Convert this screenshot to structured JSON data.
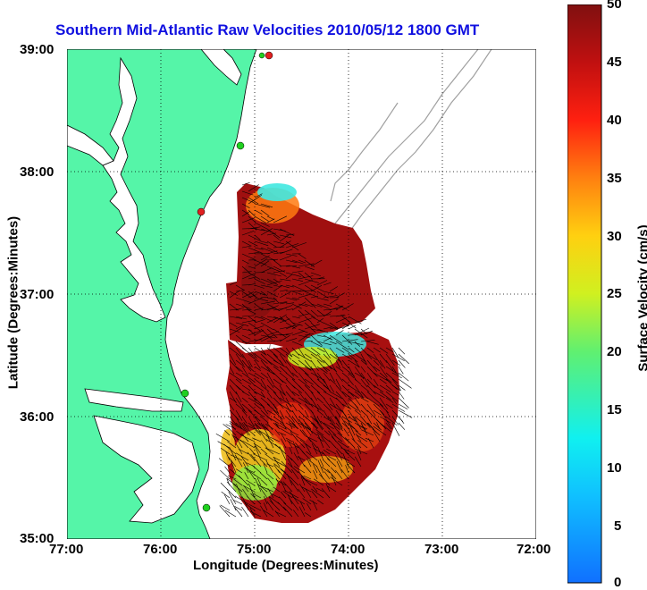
{
  "title": "Southern Mid-Atlantic Raw Velocities 2010/05/12 1800 GMT",
  "x_axis": {
    "label": "Longitude (Degrees:Minutes)",
    "ticks": [
      "77:00",
      "76:00",
      "75:00",
      "74:00",
      "73:00",
      "72:00"
    ]
  },
  "y_axis": {
    "label": "Latitude (Degrees:Minutes)",
    "ticks": [
      "39:00",
      "38:00",
      "37:00",
      "36:00",
      "35:00"
    ]
  },
  "colorbar": {
    "label": "Surface Velocity (cm/s)",
    "ticks": [
      "50",
      "45",
      "40",
      "35",
      "30",
      "25",
      "20",
      "15",
      "10",
      "5",
      "0"
    ],
    "min": 0,
    "max": 50
  },
  "colors": {
    "title": "#1010e0",
    "land": "#55f5a8",
    "coast": "#000000",
    "bathymetry": "#a0a0a0",
    "grid": "#000000",
    "station_green": "#20d020",
    "station_red": "#e02020"
  }
}
